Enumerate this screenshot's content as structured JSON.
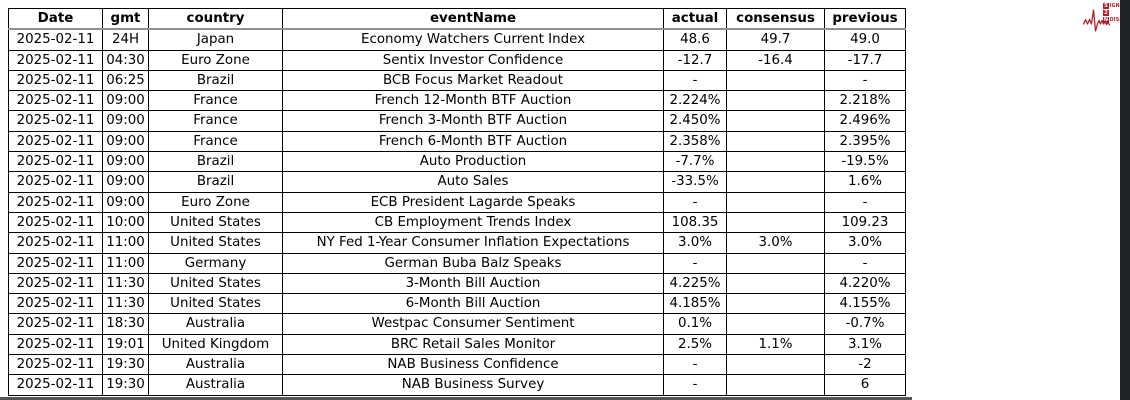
{
  "table": {
    "columns": [
      "Date",
      "gmt",
      "country",
      "eventName",
      "actual",
      "consensus",
      "previous"
    ],
    "column_keys": [
      "date",
      "gmt",
      "country",
      "event-name",
      "actual",
      "consensus",
      "previous"
    ],
    "rows": [
      [
        "2025-02-11",
        "24H",
        "Japan",
        "Economy Watchers Current Index",
        "48.6",
        "49.7",
        "49.0"
      ],
      [
        "2025-02-11",
        "04:30",
        "Euro Zone",
        "Sentix Investor Confidence",
        "-12.7",
        "-16.4",
        "-17.7"
      ],
      [
        "2025-02-11",
        "06:25",
        "Brazil",
        "BCB Focus Market Readout",
        "-",
        "",
        "-"
      ],
      [
        "2025-02-11",
        "09:00",
        "France",
        "French 12-Month BTF Auction",
        "2.224%",
        "",
        "2.218%"
      ],
      [
        "2025-02-11",
        "09:00",
        "France",
        "French 3-Month BTF Auction",
        "2.450%",
        "",
        "2.496%"
      ],
      [
        "2025-02-11",
        "09:00",
        "France",
        "French 6-Month BTF Auction",
        "2.358%",
        "",
        "2.395%"
      ],
      [
        "2025-02-11",
        "09:00",
        "Brazil",
        "Auto Production",
        "-7.7%",
        "",
        "-19.5%"
      ],
      [
        "2025-02-11",
        "09:00",
        "Brazil",
        "Auto Sales",
        "-33.5%",
        "",
        "1.6%"
      ],
      [
        "2025-02-11",
        "09:00",
        "Euro Zone",
        "ECB President Lagarde Speaks",
        "-",
        "",
        "-"
      ],
      [
        "2025-02-11",
        "10:00",
        "United States",
        "CB Employment Trends Index",
        "108.35",
        "",
        "109.23"
      ],
      [
        "2025-02-11",
        "11:00",
        "United States",
        "NY Fed 1-Year Consumer Inflation Expectations",
        "3.0%",
        "3.0%",
        "3.0%"
      ],
      [
        "2025-02-11",
        "11:00",
        "Germany",
        "German Buba Balz Speaks",
        "-",
        "",
        "-"
      ],
      [
        "2025-02-11",
        "11:30",
        "United States",
        "3-Month Bill Auction",
        "4.225%",
        "",
        "4.220%"
      ],
      [
        "2025-02-11",
        "11:30",
        "United States",
        "6-Month Bill Auction",
        "4.185%",
        "",
        "4.155%"
      ],
      [
        "2025-02-11",
        "18:30",
        "Australia",
        "Westpac Consumer Sentiment",
        "0.1%",
        "",
        "-0.7%"
      ],
      [
        "2025-02-11",
        "19:01",
        "United Kingdom",
        "BRC Retail Sales Monitor",
        "2.5%",
        "1.1%",
        "3.1%"
      ],
      [
        "2025-02-11",
        "19:30",
        "Australia",
        "NAB Business Confidence",
        "-",
        "",
        "-2"
      ],
      [
        "2025-02-11",
        "19:30",
        "Australia",
        "NAB Business Survey",
        "-",
        "",
        "6"
      ]
    ]
  },
  "logo": {
    "line1_initial": "S",
    "line1_rest": "IGNAL",
    "line2": "2",
    "line3_initial": "N",
    "line3_rest": "OISE"
  },
  "colors": {
    "logo_red": "#b22028",
    "app_edge_dark": "#1f2227",
    "bottom_edge_gray": "#555555",
    "header_separator_gray": "#8f8f8f",
    "table_border": "#000000"
  }
}
